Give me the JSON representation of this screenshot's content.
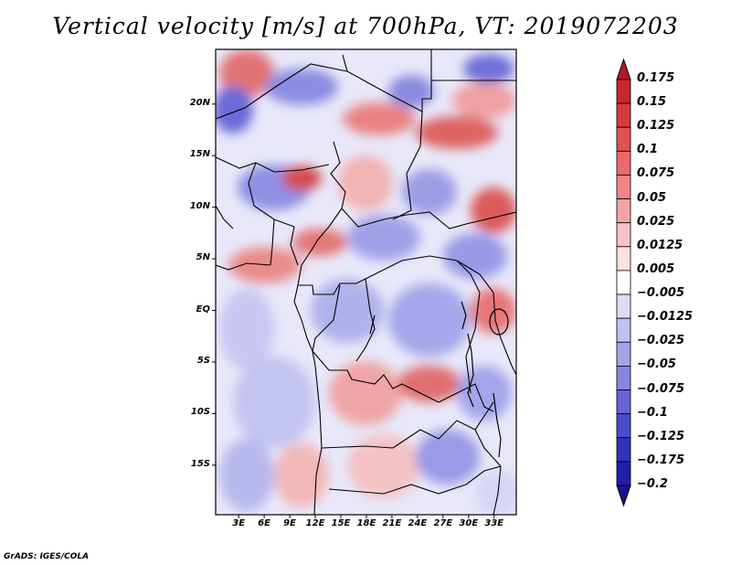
{
  "title": "Vertical velocity [m/s] at 700hPa, VT: 2019072203",
  "credit": "GrADS: IGES/COLA",
  "map": {
    "lat_labels": [
      {
        "lat": 20,
        "label": "20N"
      },
      {
        "lat": 15,
        "label": "15N"
      },
      {
        "lat": 10,
        "label": "10N"
      },
      {
        "lat": 5,
        "label": "5N"
      },
      {
        "lat": 0,
        "label": "EQ"
      },
      {
        "lat": -5,
        "label": "5S"
      },
      {
        "lat": -10,
        "label": "10S"
      },
      {
        "lat": -15,
        "label": "15S"
      }
    ],
    "lon_labels": [
      {
        "lon": 3,
        "label": "3E"
      },
      {
        "lon": 6,
        "label": "6E"
      },
      {
        "lon": 9,
        "label": "9E"
      },
      {
        "lon": 12,
        "label": "12E"
      },
      {
        "lon": 15,
        "label": "15E"
      },
      {
        "lon": 18,
        "label": "18E"
      },
      {
        "lon": 21,
        "label": "21E"
      },
      {
        "lon": 24,
        "label": "24E"
      },
      {
        "lon": 27,
        "label": "27E"
      },
      {
        "lon": 30,
        "label": "30E"
      },
      {
        "lon": 33,
        "label": "33E"
      }
    ],
    "lon_range": [
      0.3,
      35.6
    ],
    "lat_range": [
      -19.8,
      25.3
    ]
  },
  "colorbar": {
    "labels": [
      "0.175",
      "0.15",
      "0.125",
      "0.1",
      "0.075",
      "0.05",
      "0.025",
      "0.0125",
      "0.005",
      "-0.005",
      "-0.0125",
      "-0.025",
      "-0.05",
      "-0.075",
      "-0.1",
      "-0.125",
      "-0.175",
      "-0.2"
    ],
    "colors": [
      "#b2182b",
      "#c9262f",
      "#d73a3a",
      "#e05252",
      "#e86b6b",
      "#f08585",
      "#f4a3a3",
      "#f8c2c2",
      "#fbe0e0",
      "#ffffff",
      "#dcdcf8",
      "#c0c0f2",
      "#a3a3ea",
      "#8585e2",
      "#6666d8",
      "#4b4bcb",
      "#3232bb",
      "#1f1fa8",
      "#16168f"
    ]
  }
}
